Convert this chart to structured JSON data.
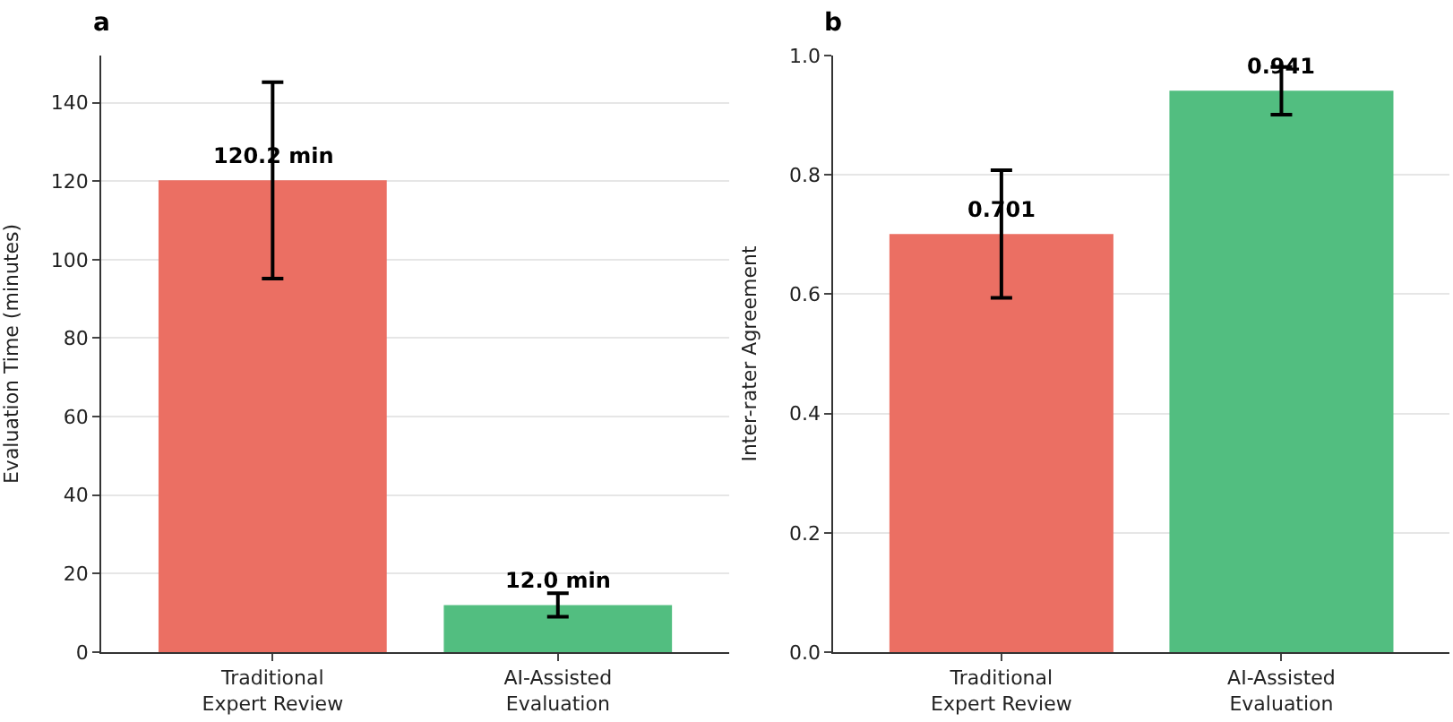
{
  "chart_data": [
    {
      "type": "bar",
      "title": "a",
      "ylabel": "Evaluation Time (minutes)",
      "categories": [
        "Traditional\nExpert Review",
        "AI-Assisted\nEvaluation"
      ],
      "values": [
        120.2,
        12.0
      ],
      "colors": [
        "#eb6f63",
        "#52be80"
      ],
      "errors": [
        25,
        3
      ],
      "value_labels": [
        "120.2 min",
        "12.0 min"
      ],
      "ylim": [
        0,
        152
      ],
      "yticks": [
        0,
        20,
        40,
        60,
        80,
        100,
        120,
        140
      ],
      "grid": "y"
    },
    {
      "type": "bar",
      "title": "b",
      "ylabel": "Inter-rater Agreement",
      "categories": [
        "Traditional\nExpert Review",
        "AI-Assisted\nEvaluation"
      ],
      "values": [
        0.701,
        0.941
      ],
      "colors": [
        "#eb6f63",
        "#52be80"
      ],
      "errors": [
        0.107,
        0.04
      ],
      "data_labels": true,
      "ylim": [
        0,
        1.0
      ],
      "yticks": [
        {
          "value": 0,
          "label": "0.0"
        },
        0.2,
        0.4,
        0.6,
        0.8,
        {
          "value": 1.0,
          "label": "1.0"
        }
      ],
      "grid": "y"
    }
  ]
}
